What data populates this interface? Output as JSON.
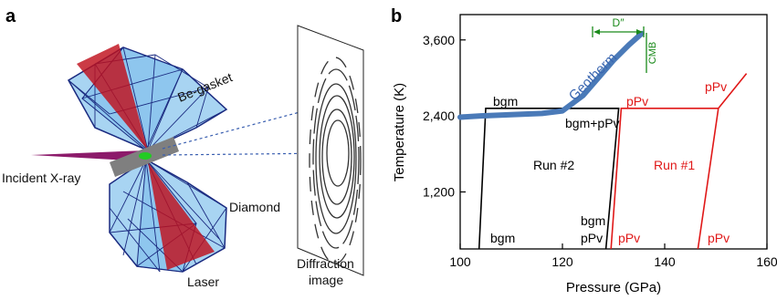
{
  "panel_a": {
    "label": "a",
    "labels": {
      "incident": "Incident X-ray",
      "gasket": "Be-gasket",
      "diamond": "Diamond",
      "laser": "Laser",
      "diffraction_line1": "Diffraction",
      "diffraction_line2": "image"
    },
    "colors": {
      "diamond": "#a8d4f2",
      "diamond_edge": "#1a2a80",
      "laser": "#c0101c",
      "xray": "#8c1a6a",
      "gasket": "#808080",
      "sample": "#22cc22"
    }
  },
  "panel_b": {
    "label": "b",
    "colors": {
      "run2": "#000000",
      "run1": "#e01818",
      "geotherm": "#4a7ab8",
      "d_double_prime": "#1a8a1a"
    },
    "labels": {
      "geotherm": "Geotherm",
      "d_double_prime": "D″",
      "cmb": "CMB",
      "bgm_top": "bgm",
      "bgm_ppv_top": "bgm+pPv",
      "ppv_top_left": "pPv",
      "ppv_top_right": "pPv",
      "run2": "Run #2",
      "run1": "Run #1",
      "bgm_bottom_left": "bgm",
      "bgm_bottom_mid": "bgm",
      "ppv_bottom_mid": "pPv",
      "ppv_bottom_mid2": "pPv",
      "ppv_bottom_right": "pPv"
    }
  },
  "chart_data": {
    "type": "line",
    "xlabel": "Pressure (GPa)",
    "ylabel": "Temperature (K)",
    "xlim": [
      100,
      160
    ],
    "ylim": [
      300,
      4000
    ],
    "xticks": [
      100,
      120,
      140,
      160
    ],
    "yticks": [
      1200,
      2400,
      3600
    ],
    "xtick_labels": [
      "100",
      "120",
      "140",
      "160"
    ],
    "ytick_labels": [
      "1,200",
      "2,400",
      "3,600"
    ],
    "grid": false,
    "series": [
      {
        "name": "Run #2",
        "paths": [
          [
            [
              103.7,
              300
            ],
            [
              105,
              2520
            ],
            [
              131,
              2520
            ],
            [
              128.5,
              300
            ]
          ],
          [
            [
              121,
              2520
            ],
            [
              131,
              2520
            ]
          ]
        ]
      },
      {
        "name": "Run #1",
        "paths": [
          [
            [
              129.5,
              300
            ],
            [
              131.5,
              2520
            ],
            [
              150.5,
              2520
            ]
          ],
          [
            [
              146.5,
              300
            ],
            [
              150.5,
              2520
            ],
            [
              156,
              3070
            ],
            [
              150.5,
              2520
            ]
          ]
        ]
      },
      {
        "name": "Geotherm",
        "x": [
          100,
          104,
          110,
          116,
          120,
          124,
          127,
          130,
          133,
          135.5
        ],
        "y": [
          2380,
          2400,
          2420,
          2440,
          2480,
          2720,
          3000,
          3280,
          3520,
          3700
        ]
      }
    ],
    "annotations": {
      "d_double_prime_range": [
        125,
        135.5
      ],
      "cmb_pressure": 136
    }
  }
}
